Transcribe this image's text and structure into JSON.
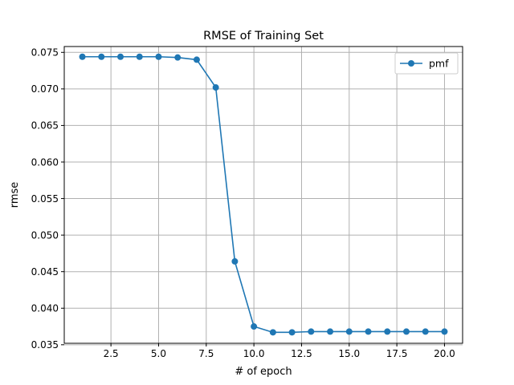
{
  "chart_data": {
    "type": "line",
    "title": "RMSE of Training Set",
    "xlabel": "# of epoch",
    "ylabel": "rmse",
    "xlim": [
      0.05,
      20.95
    ],
    "ylim": [
      0.0352,
      0.0758
    ],
    "xticks": [
      2.5,
      5.0,
      7.5,
      10.0,
      12.5,
      15.0,
      17.5,
      20.0
    ],
    "xtick_labels": [
      "2.5",
      "5.0",
      "7.5",
      "10.0",
      "12.5",
      "15.0",
      "17.5",
      "20.0"
    ],
    "yticks": [
      0.035,
      0.04,
      0.045,
      0.05,
      0.055,
      0.06,
      0.065,
      0.07,
      0.075
    ],
    "ytick_labels": [
      "0.035",
      "0.040",
      "0.045",
      "0.050",
      "0.055",
      "0.060",
      "0.065",
      "0.070",
      "0.075"
    ],
    "grid": true,
    "legend_position": "top-right",
    "series": [
      {
        "name": "pmf",
        "color": "#1f77b4",
        "marker": "circle",
        "x": [
          1,
          2,
          3,
          4,
          5,
          6,
          7,
          8,
          9,
          10,
          11,
          12,
          13,
          14,
          15,
          16,
          17,
          18,
          19,
          20
        ],
        "y": [
          0.0744,
          0.0744,
          0.0744,
          0.0744,
          0.0744,
          0.0743,
          0.074,
          0.0702,
          0.0464,
          0.0375,
          0.0367,
          0.0367,
          0.0368,
          0.0368,
          0.0368,
          0.0368,
          0.0368,
          0.0368,
          0.0368,
          0.0368
        ]
      }
    ]
  }
}
